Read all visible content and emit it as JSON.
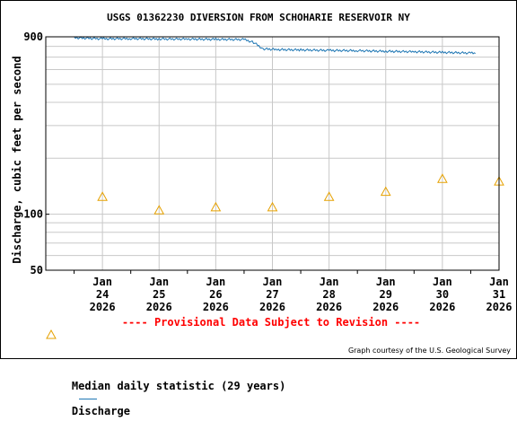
{
  "chart_data": {
    "type": "line",
    "title": "USGS 01362230 DIVERSION FROM SCHOHARIE RESERVOIR NY",
    "ylabel": "Discharge, cubic feet per second",
    "xlabel": "",
    "y_scale": "log",
    "ylim": [
      50,
      900
    ],
    "y_ticks": [
      {
        "value": 900,
        "label": "900"
      },
      {
        "value": 100,
        "label": "100"
      },
      {
        "value": 50,
        "label": "50"
      }
    ],
    "x_ticks": [
      {
        "date": "2026-01-24",
        "label": [
          "Jan",
          "24",
          "2026"
        ]
      },
      {
        "date": "2026-01-25",
        "label": [
          "Jan",
          "25",
          "2026"
        ]
      },
      {
        "date": "2026-01-26",
        "label": [
          "Jan",
          "26",
          "2026"
        ]
      },
      {
        "date": "2026-01-27",
        "label": [
          "Jan",
          "27",
          "2026"
        ]
      },
      {
        "date": "2026-01-28",
        "label": [
          "Jan",
          "28",
          "2026"
        ]
      },
      {
        "date": "2026-01-29",
        "label": [
          "Jan",
          "29",
          "2026"
        ]
      },
      {
        "date": "2026-01-30",
        "label": [
          "Jan",
          "30",
          "2026"
        ]
      },
      {
        "date": "2026-01-31",
        "label": [
          "Jan",
          "31",
          "2026"
        ]
      }
    ],
    "grid": true,
    "series": [
      {
        "name": "Discharge",
        "color": "#1f77b4",
        "points": [
          {
            "x": "2026-01-24 00:00",
            "y": 890
          },
          {
            "x": "2026-01-24 12:00",
            "y": 878
          },
          {
            "x": "2026-01-25 00:00",
            "y": 880
          },
          {
            "x": "2026-01-25 12:00",
            "y": 876
          },
          {
            "x": "2026-01-26 00:00",
            "y": 875
          },
          {
            "x": "2026-01-26 12:00",
            "y": 872
          },
          {
            "x": "2026-01-27 00:00",
            "y": 870
          },
          {
            "x": "2026-01-27 04:00",
            "y": 840
          },
          {
            "x": "2026-01-27 08:00",
            "y": 775
          },
          {
            "x": "2026-01-27 14:00",
            "y": 768
          },
          {
            "x": "2026-01-28 00:00",
            "y": 765
          },
          {
            "x": "2026-01-28 12:00",
            "y": 760
          },
          {
            "x": "2026-01-29 00:00",
            "y": 758
          },
          {
            "x": "2026-01-29 12:00",
            "y": 752
          },
          {
            "x": "2026-01-30 00:00",
            "y": 748
          },
          {
            "x": "2026-01-30 12:00",
            "y": 742
          },
          {
            "x": "2026-01-31 00:00",
            "y": 736
          },
          {
            "x": "2026-01-31 02:00",
            "y": 732
          }
        ]
      },
      {
        "name": "Median daily statistic (29 years)",
        "color": "#e6a100",
        "marker": "triangle",
        "points": [
          {
            "x": "2026-01-24 12:00",
            "y": 124
          },
          {
            "x": "2026-01-25 12:00",
            "y": 105
          },
          {
            "x": "2026-01-26 12:00",
            "y": 109
          },
          {
            "x": "2026-01-27 12:00",
            "y": 109
          },
          {
            "x": "2026-01-28 12:00",
            "y": 124
          },
          {
            "x": "2026-01-29 12:00",
            "y": 132
          },
          {
            "x": "2026-01-30 12:00",
            "y": 155
          },
          {
            "x": "2026-01-31 12:00",
            "y": 150
          }
        ]
      }
    ],
    "provisional_note": "---- Provisional Data Subject to Revision ----",
    "legend": {
      "position": "bottom",
      "median_label": "Median daily statistic (29 years)",
      "discharge_label": "Discharge"
    },
    "credit": "Graph courtesy of the U.S. Geological Survey"
  }
}
